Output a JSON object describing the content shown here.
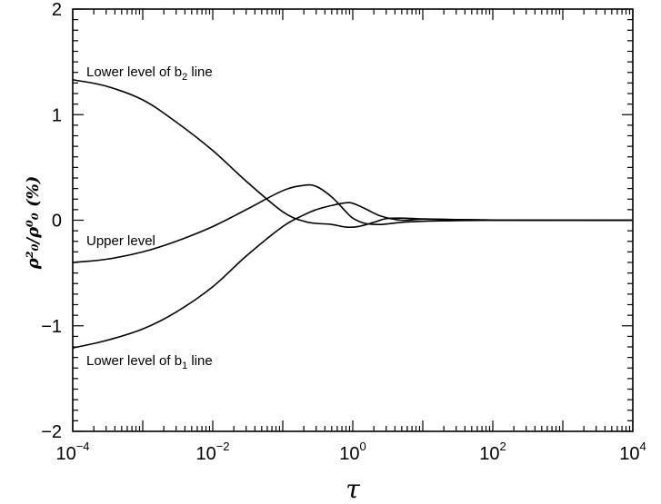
{
  "chart_data": {
    "type": "line",
    "title": "",
    "xlabel": "τ",
    "ylabel": "ρ²₀/ρ⁰₀ (%)",
    "x_scale": "log",
    "xlim": [
      0.0001,
      10000
    ],
    "ylim": [
      -2,
      2
    ],
    "grid": false,
    "x_ticks": [
      {
        "base": "10",
        "exp": "−4",
        "value": 0.0001
      },
      {
        "base": "10",
        "exp": "−2",
        "value": 0.01
      },
      {
        "base": "10",
        "exp": "0",
        "value": 1
      },
      {
        "base": "10",
        "exp": "2",
        "value": 100
      },
      {
        "base": "10",
        "exp": "4",
        "value": 10000
      }
    ],
    "y_ticks": [
      {
        "label": "2",
        "value": 2
      },
      {
        "label": "1",
        "value": 1
      },
      {
        "label": "0",
        "value": 0
      },
      {
        "label": "−1",
        "value": -1
      },
      {
        "label": "−2",
        "value": -2
      }
    ],
    "annotations": [
      {
        "id": "b2",
        "text_main": "Lower level of b",
        "text_sub": "2",
        "text_tail": " line"
      },
      {
        "id": "upper",
        "text_main": "Upper level",
        "text_sub": "",
        "text_tail": ""
      },
      {
        "id": "b1",
        "text_main": "Lower level of b",
        "text_sub": "1",
        "text_tail": " line"
      }
    ],
    "series": [
      {
        "id": "b2",
        "x": [
          0.0001,
          0.0003,
          0.001,
          0.003,
          0.01,
          0.03,
          0.1,
          0.2,
          0.3,
          0.5,
          0.8,
          1.2,
          2,
          3,
          5,
          10,
          30,
          100,
          1000,
          10000
        ],
        "values": [
          1.33,
          1.27,
          1.14,
          0.93,
          0.66,
          0.37,
          0.08,
          -0.01,
          -0.03,
          -0.04,
          -0.065,
          -0.06,
          -0.02,
          0.015,
          0.02,
          0.012,
          0.006,
          0.002,
          0.0,
          0.0
        ]
      },
      {
        "id": "upper",
        "x": [
          0.0001,
          0.0003,
          0.001,
          0.003,
          0.01,
          0.03,
          0.1,
          0.2,
          0.3,
          0.5,
          0.8,
          1,
          1.5,
          2.5,
          5,
          10,
          30,
          100,
          1000,
          10000
        ],
        "values": [
          -0.4,
          -0.37,
          -0.3,
          -0.2,
          -0.06,
          0.1,
          0.28,
          0.33,
          0.32,
          0.22,
          0.08,
          0.02,
          -0.03,
          -0.04,
          -0.02,
          -0.01,
          -0.004,
          -0.001,
          0.0,
          0.0
        ]
      },
      {
        "id": "b1",
        "x": [
          0.0001,
          0.0003,
          0.001,
          0.003,
          0.01,
          0.03,
          0.1,
          0.2,
          0.3,
          0.5,
          0.8,
          1,
          1.5,
          2.5,
          5,
          10,
          30,
          100,
          1000,
          10000
        ],
        "values": [
          -1.21,
          -1.14,
          -1.03,
          -0.87,
          -0.63,
          -0.34,
          -0.06,
          0.05,
          0.1,
          0.14,
          0.165,
          0.16,
          0.11,
          0.04,
          0.0,
          0.01,
          0.006,
          0.002,
          0.0,
          0.0
        ]
      }
    ]
  }
}
